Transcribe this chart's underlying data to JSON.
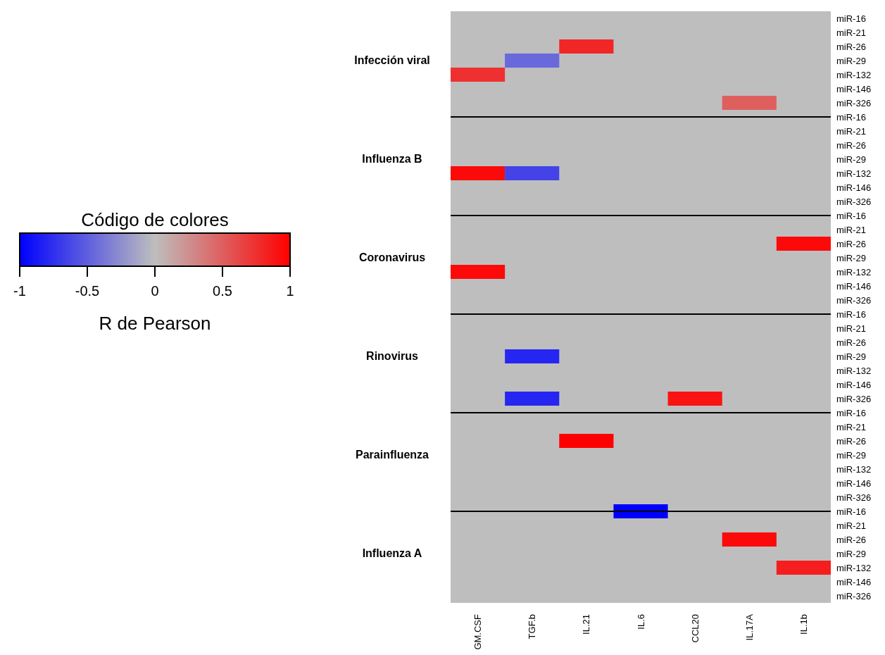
{
  "chart_data": {
    "type": "heatmap",
    "categories": [
      "GM.CSF",
      "TGF.b",
      "IL.21",
      "IL.6",
      "CCL20",
      "IL.17A",
      "IL.1b"
    ],
    "y_categories": [
      "miR-16",
      "miR-21",
      "miR-26",
      "miR-29",
      "miR-132",
      "miR-146",
      "miR-326",
      "miR-16",
      "miR-21",
      "miR-26",
      "miR-29",
      "miR-132",
      "miR-146",
      "miR-326",
      "miR-16",
      "miR-21",
      "miR-26",
      "miR-29",
      "miR-132",
      "miR-146",
      "miR-326",
      "miR-16",
      "miR-21",
      "miR-26",
      "miR-29",
      "miR-132",
      "miR-146",
      "miR-326",
      "miR-16",
      "miR-21",
      "miR-26",
      "miR-29",
      "miR-132",
      "miR-146",
      "miR-326",
      "miR-16",
      "miR-21",
      "miR-26",
      "miR-29",
      "miR-132",
      "miR-146",
      "miR-326"
    ],
    "y2_categories": [
      null,
      null,
      null,
      "Infección viral",
      null,
      null,
      null,
      null,
      null,
      null,
      "Influenza B",
      null,
      null,
      null,
      null,
      null,
      null,
      "Coronavirus",
      null,
      null,
      null,
      null,
      null,
      null,
      "Rinovirus",
      null,
      null,
      null,
      null,
      null,
      null,
      "Parainfluenza",
      null,
      null,
      null,
      null,
      null,
      null,
      "Influenza A",
      null,
      null,
      null
    ],
    "cells": [
      [
        null,
        null,
        null,
        null,
        null,
        null,
        null
      ],
      [
        null,
        null,
        null,
        null,
        null,
        null,
        null
      ],
      [
        null,
        null,
        0.8,
        null,
        null,
        null,
        null
      ],
      [
        null,
        -0.45,
        null,
        null,
        null,
        null,
        null
      ],
      [
        0.75,
        null,
        null,
        null,
        null,
        null,
        null
      ],
      [
        null,
        null,
        null,
        null,
        null,
        null,
        null
      ],
      [
        null,
        null,
        null,
        null,
        null,
        0.5,
        null
      ],
      [
        null,
        null,
        null,
        null,
        null,
        null,
        null
      ],
      [
        null,
        null,
        null,
        null,
        null,
        null,
        null
      ],
      [
        null,
        null,
        null,
        null,
        null,
        null,
        null
      ],
      [
        null,
        null,
        null,
        null,
        null,
        null,
        null
      ],
      [
        0.95,
        -0.65,
        null,
        null,
        null,
        null,
        null
      ],
      [
        null,
        null,
        null,
        null,
        null,
        null,
        null
      ],
      [
        null,
        null,
        null,
        null,
        null,
        null,
        null
      ],
      [
        null,
        null,
        null,
        null,
        null,
        null,
        null
      ],
      [
        null,
        null,
        null,
        null,
        null,
        null,
        null
      ],
      [
        null,
        null,
        null,
        null,
        null,
        null,
        0.95
      ],
      [
        null,
        null,
        null,
        null,
        null,
        null,
        null
      ],
      [
        0.95,
        null,
        null,
        null,
        null,
        null,
        null
      ],
      [
        null,
        null,
        null,
        null,
        null,
        null,
        null
      ],
      [
        null,
        null,
        null,
        null,
        null,
        null,
        null
      ],
      [
        null,
        null,
        null,
        null,
        null,
        null,
        null
      ],
      [
        null,
        null,
        null,
        null,
        null,
        null,
        null
      ],
      [
        null,
        null,
        null,
        null,
        null,
        null,
        null
      ],
      [
        null,
        -0.8,
        null,
        null,
        null,
        null,
        null
      ],
      [
        null,
        null,
        null,
        null,
        null,
        null,
        null
      ],
      [
        null,
        null,
        null,
        null,
        null,
        null,
        null
      ],
      [
        null,
        -0.8,
        null,
        null,
        0.9,
        null,
        null
      ],
      [
        null,
        null,
        null,
        null,
        null,
        null,
        null
      ],
      [
        null,
        null,
        null,
        null,
        null,
        null,
        null
      ],
      [
        null,
        null,
        1,
        null,
        null,
        null,
        null
      ],
      [
        null,
        null,
        null,
        null,
        null,
        null,
        null
      ],
      [
        null,
        null,
        null,
        null,
        null,
        null,
        null
      ],
      [
        null,
        null,
        null,
        null,
        null,
        null,
        null
      ],
      [
        null,
        null,
        null,
        null,
        null,
        null,
        null
      ],
      [
        null,
        null,
        null,
        -1,
        null,
        null,
        null
      ],
      [
        null,
        null,
        null,
        null,
        null,
        null,
        null
      ],
      [
        null,
        null,
        null,
        null,
        null,
        0.95,
        null
      ],
      [
        null,
        null,
        null,
        null,
        null,
        null,
        null
      ],
      [
        null,
        null,
        null,
        null,
        null,
        null,
        0.85
      ],
      [
        null,
        null,
        null,
        null,
        null,
        null,
        null
      ],
      [
        null,
        null,
        null,
        null,
        null,
        null,
        null
      ]
    ],
    "clim": [
      -1,
      1
    ],
    "cticks": [
      {
        "value": -1,
        "label": "-1"
      },
      {
        "value": -0.5,
        "label": "-0.5"
      },
      0,
      0.5,
      1
    ],
    "legend_title": "Código de colores",
    "clabel": "R de Pearson"
  }
}
